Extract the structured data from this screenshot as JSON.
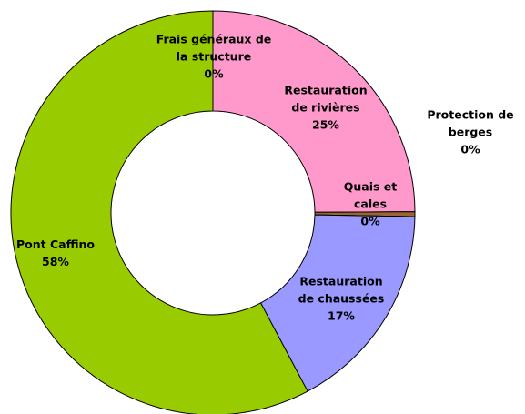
{
  "chart_data": {
    "type": "donut",
    "categories": [
      "Frais généraux de la structure",
      "Restauration de rivières",
      "Protection de berges",
      "Quais et cales",
      "Restauration de chaussées",
      "Pont Caffino"
    ],
    "values": [
      0,
      25,
      0.4,
      0,
      17,
      58
    ],
    "value_labels": [
      "0%",
      "25%",
      "0%",
      "0%",
      "17%",
      "58%"
    ],
    "colors": [
      "#ffcc99",
      "#ff99cc",
      "#996633",
      "#ccccff",
      "#9999ff",
      "#99cc00"
    ],
    "start": "top",
    "direction": "clockwise"
  }
}
